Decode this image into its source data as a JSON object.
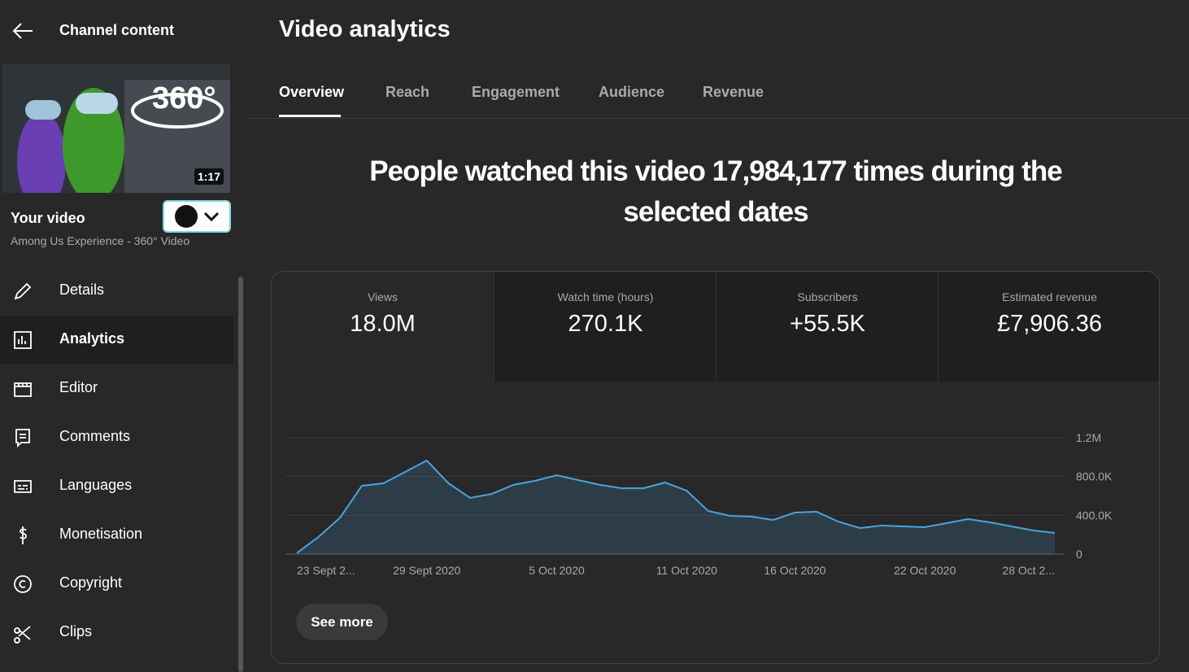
{
  "sidebar": {
    "header": "Channel content",
    "thumbnail": {
      "overlay": "360°",
      "duration": "1:17"
    },
    "video_label": "Your video",
    "video_title": "Among Us Experience - 360° Video",
    "nav": [
      "Details",
      "Analytics",
      "Editor",
      "Comments",
      "Languages",
      "Monetisation",
      "Copyright",
      "Clips"
    ]
  },
  "header": {
    "title": "Video analytics"
  },
  "tabs": [
    "Overview",
    "Reach",
    "Engagement",
    "Audience",
    "Revenue"
  ],
  "headline": "People watched this video 17,984,177 times during the selected dates",
  "metrics": [
    {
      "label": "Views",
      "value": "18.0M"
    },
    {
      "label": "Watch time (hours)",
      "value": "270.1K"
    },
    {
      "label": "Subscribers",
      "value": "+55.5K"
    },
    {
      "label": "Estimated revenue",
      "value": "£7,906.36"
    }
  ],
  "chart_data": {
    "type": "line",
    "x": [
      "23 Sept 2...",
      null,
      null,
      null,
      null,
      null,
      "29 Sept 2020",
      null,
      null,
      null,
      null,
      null,
      "5 Oct 2020",
      null,
      null,
      null,
      null,
      null,
      "11 Oct 2020",
      null,
      null,
      null,
      null,
      "16 Oct 2020",
      null,
      null,
      null,
      null,
      null,
      "22 Oct 2020",
      null,
      null,
      null,
      null,
      null,
      "28 Oct 2..."
    ],
    "values": [
      10000,
      176000,
      377000,
      704000,
      730000,
      847000,
      964000,
      730000,
      579000,
      620000,
      713000,
      755000,
      813000,
      763000,
      713000,
      679000,
      679000,
      738000,
      654000,
      444000,
      394000,
      386000,
      352000,
      428000,
      436000,
      335000,
      268000,
      294000,
      285000,
      277000,
      319000,
      361000,
      327000,
      285000,
      243000,
      218000
    ],
    "color": "#4aa3df",
    "ylim": [
      0,
      1200000
    ],
    "yticks": [
      0,
      {
        "value": 400000,
        "label": "400.0K"
      },
      {
        "value": 800000,
        "label": "800.0K"
      },
      {
        "value": 1200000,
        "label": "1.2M"
      }
    ],
    "grid": true
  },
  "button": "See more"
}
